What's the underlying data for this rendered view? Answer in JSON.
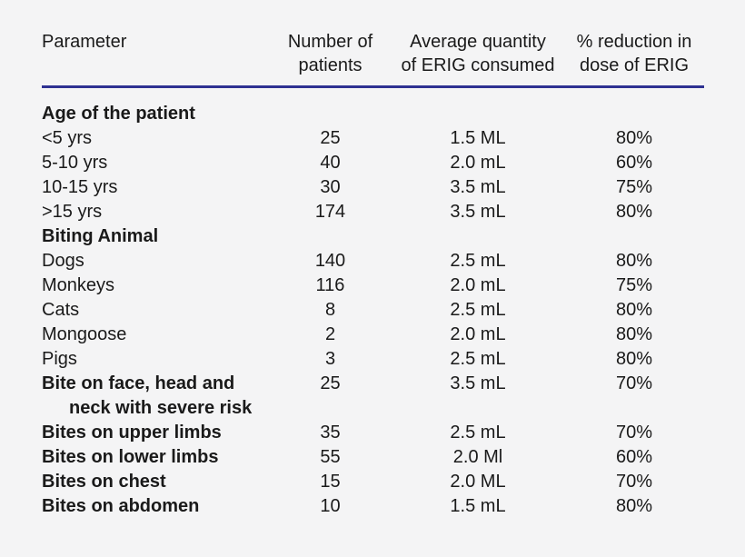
{
  "figure": {
    "background_color": "#f4f4f5",
    "text_color": "#1a1a1a",
    "rule_color": "#2e3191"
  },
  "table": {
    "columns": [
      {
        "id": "parameter",
        "label": "Parameter"
      },
      {
        "id": "patients",
        "label": "Number of\npatients"
      },
      {
        "id": "quantity",
        "label": "Average quantity\nof ERIG consumed"
      },
      {
        "id": "reduction",
        "label": "% reduction in\ndose of ERIG"
      }
    ],
    "rows": [
      {
        "param": "Age of the patient",
        "bold": true,
        "patients": "",
        "quantity": "",
        "reduction": ""
      },
      {
        "param": "<5 yrs",
        "bold": false,
        "patients": "25",
        "quantity": "1.5 ML",
        "reduction": "80%"
      },
      {
        "param": "5-10 yrs",
        "bold": false,
        "patients": "40",
        "quantity": "2.0 mL",
        "reduction": "60%"
      },
      {
        "param": "10-15 yrs",
        "bold": false,
        "patients": "30",
        "quantity": "3.5 mL",
        "reduction": "75%"
      },
      {
        "param": ">15 yrs",
        "bold": false,
        "patients": "174",
        "quantity": "3.5 mL",
        "reduction": "80%"
      },
      {
        "param": "Biting Animal",
        "bold": true,
        "patients": "",
        "quantity": "",
        "reduction": ""
      },
      {
        "param": "Dogs",
        "bold": false,
        "patients": "140",
        "quantity": "2.5 mL",
        "reduction": "80%"
      },
      {
        "param": "Monkeys",
        "bold": false,
        "patients": "116",
        "quantity": "2.0 mL",
        "reduction": "75%"
      },
      {
        "param": "Cats",
        "bold": false,
        "patients": "8",
        "quantity": "2.5 mL",
        "reduction": "80%"
      },
      {
        "param": "Mongoose",
        "bold": false,
        "patients": "2",
        "quantity": "2.0 mL",
        "reduction": "80%"
      },
      {
        "param": "Pigs",
        "bold": false,
        "patients": "3",
        "quantity": "2.5 mL",
        "reduction": "80%"
      },
      {
        "param": "Bite on face, head and",
        "param2": "neck with severe risk",
        "bold": true,
        "patients": "25",
        "quantity": "3.5 mL",
        "reduction": "70%"
      },
      {
        "param": "Bites on upper limbs",
        "bold": true,
        "patients": "35",
        "quantity": "2.5 mL",
        "reduction": "70%"
      },
      {
        "param": "Bites on lower limbs",
        "bold": true,
        "patients": "55",
        "quantity": "2.0 Ml",
        "reduction": "60%"
      },
      {
        "param": "Bites on chest",
        "bold": true,
        "patients": "15",
        "quantity": "2.0 ML",
        "reduction": "70%"
      },
      {
        "param": "Bites on abdomen",
        "bold": true,
        "patients": "10",
        "quantity": "1.5 mL",
        "reduction": "80%"
      }
    ]
  }
}
